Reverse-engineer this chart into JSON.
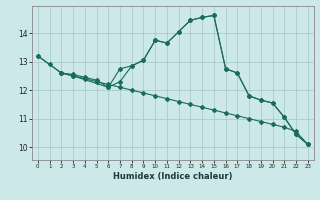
{
  "xlabel": "Humidex (Indice chaleur)",
  "bg_color": "#cce8e8",
  "grid_color": "#aacccc",
  "line_color": "#1a6b5a",
  "xlim": [
    -0.5,
    23.5
  ],
  "ylim": [
    9.55,
    14.95
  ],
  "xticks": [
    0,
    1,
    2,
    3,
    4,
    5,
    6,
    7,
    8,
    9,
    10,
    11,
    12,
    13,
    14,
    15,
    16,
    17,
    18,
    19,
    20,
    21,
    22,
    23
  ],
  "yticks": [
    10,
    11,
    12,
    13,
    14
  ],
  "lines": [
    {
      "x": [
        0,
        1,
        2,
        3,
        4,
        5,
        6,
        7,
        8,
        9,
        10,
        11,
        12,
        13,
        14,
        15,
        16,
        17,
        18,
        19,
        20,
        21,
        22,
        23
      ],
      "y": [
        13.2,
        12.9,
        12.6,
        12.55,
        12.45,
        12.35,
        12.1,
        12.3,
        12.85,
        13.05,
        13.75,
        13.65,
        14.05,
        14.45,
        14.55,
        14.62,
        12.75,
        12.6,
        11.8,
        11.65,
        11.55,
        11.05,
        10.45,
        10.1
      ]
    },
    {
      "x": [
        0,
        2,
        3,
        4,
        5,
        6,
        7,
        8,
        9,
        10,
        11,
        12,
        13,
        14,
        15,
        16,
        17,
        18,
        19,
        20,
        21,
        22,
        23
      ],
      "y": [
        13.2,
        12.6,
        12.5,
        12.4,
        12.3,
        12.2,
        12.1,
        12.0,
        11.9,
        11.8,
        11.7,
        11.6,
        11.5,
        11.4,
        11.3,
        11.2,
        11.1,
        11.0,
        10.9,
        10.8,
        10.7,
        10.55,
        10.1
      ]
    },
    {
      "x": [
        2,
        3,
        6,
        7,
        8,
        9,
        10,
        11,
        12,
        13,
        14,
        15,
        16,
        17,
        18,
        19,
        20,
        21,
        22,
        23
      ],
      "y": [
        12.6,
        12.5,
        12.1,
        12.75,
        12.85,
        13.05,
        13.75,
        13.65,
        14.05,
        14.45,
        14.55,
        14.62,
        12.75,
        12.6,
        11.8,
        11.65,
        11.55,
        11.05,
        10.45,
        10.1
      ]
    }
  ]
}
